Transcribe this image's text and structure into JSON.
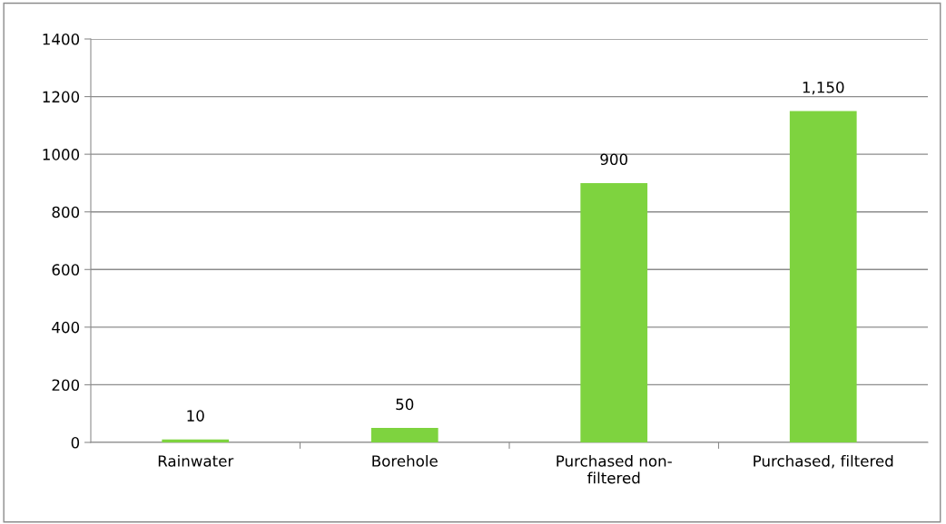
{
  "chart_data": {
    "type": "bar",
    "categories": [
      "Rainwater",
      "Borehole",
      "Purchased non-\nfiltered",
      "Purchased, filtered"
    ],
    "values": [
      10,
      50,
      900,
      1150
    ],
    "value_labels": [
      "10",
      "50",
      "900",
      "1,150"
    ],
    "color": "#7ed33f",
    "ylim": [
      0,
      1400
    ],
    "yticks": [
      0,
      200,
      400,
      600,
      800,
      1000,
      1200,
      1400
    ],
    "grid": "y",
    "legend": false
  }
}
